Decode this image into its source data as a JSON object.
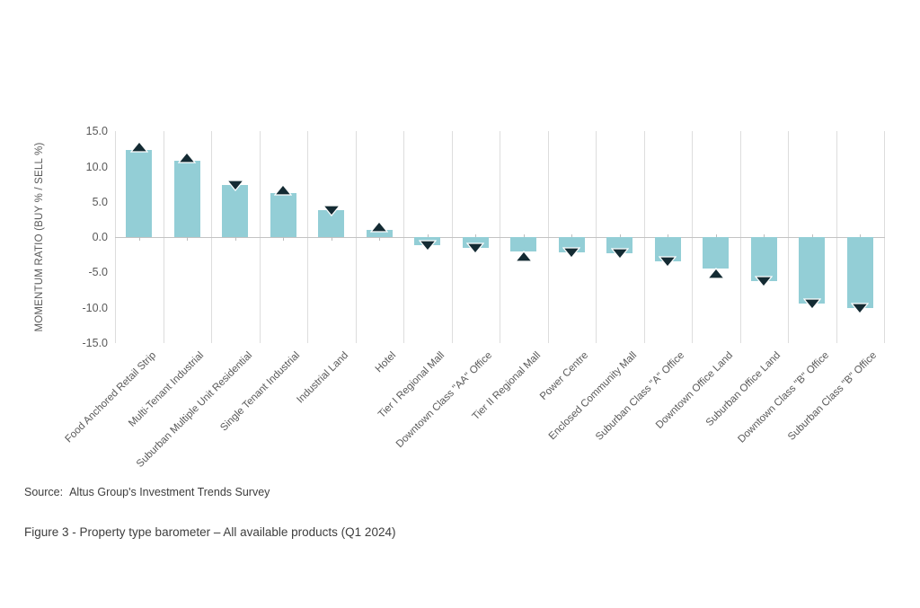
{
  "figure": {
    "source_label": "Source:",
    "source_text": "Altus Group's Investment Trends Survey",
    "caption": "Figure 3 - Property type barometer – All available products (Q1 2024)"
  },
  "chart_data": {
    "type": "bar",
    "title": "",
    "xlabel": "",
    "ylabel": "MOMENTUM RATIO (BUY % / SELL %)",
    "ylim": [
      -15,
      15
    ],
    "ytick_values": [
      15,
      10,
      5,
      0,
      -5,
      -10,
      -15
    ],
    "ytick_labels": [
      "15.0",
      "10.0",
      "5.0",
      "0.0",
      "-5.0",
      "-10.0",
      "-15.0"
    ],
    "grid": "vertical category gridlines, zero axis line",
    "legend": "none",
    "bar_color": "#93ced6",
    "marker_color": "#142b33",
    "categories": [
      "Food Anchored Retail Strip",
      "Multi-Tenant Industrial",
      "Suburban Multiple Unit Residential",
      "Single Tenant Industrial",
      "Industrial Land",
      "Hotel",
      "Tier I Regional Mall",
      "Downtown Class \"AA\" Office",
      "Tier II Regional Mall",
      "Power Centre",
      "Enclosed Community Mall",
      "Suburban Class \"A\" Office",
      "Downtown Office Land",
      "Suburban Office Land",
      "Downtown Class \"B\" Office",
      "Suburban Class \"B\" Office"
    ],
    "values": [
      12.3,
      10.8,
      7.4,
      6.3,
      3.8,
      1.0,
      -1.2,
      -1.5,
      -2.1,
      -2.2,
      -2.3,
      -3.4,
      -4.4,
      -6.2,
      -9.4,
      -10.0
    ],
    "marker_directions": [
      "up",
      "up",
      "down",
      "up",
      "down",
      "up",
      "down",
      "down",
      "up",
      "down",
      "down",
      "down",
      "up",
      "down",
      "down",
      "down"
    ]
  }
}
